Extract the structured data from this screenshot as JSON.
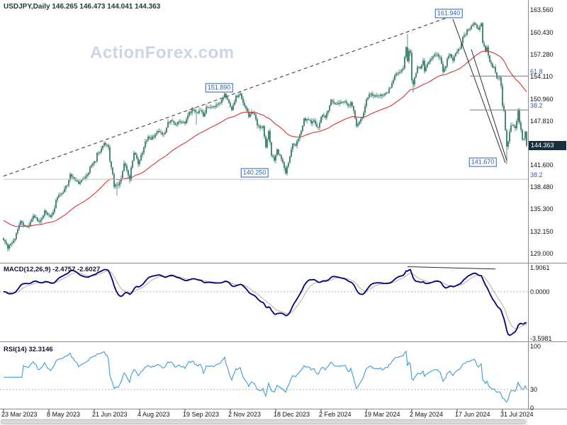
{
  "header": {
    "title": "USDJPY,Daily 146.265 146.473 144.041 144.363",
    "symbol": "USDJPY",
    "timeframe": "Daily",
    "open": "146.265",
    "high": "146.473",
    "low": "144.041",
    "close": "144.363"
  },
  "watermark": "ActionForex.com",
  "panels": {
    "macd": {
      "title": "MACD(12,26,9) -2.4757 -2.6027"
    },
    "rsi": {
      "title": "RSI(14) 32.3146"
    }
  },
  "colors": {
    "background": "#ffffff",
    "candle": "#1d6b5a",
    "ma_line": "#d63333",
    "trendline": "#2f2f2f",
    "fib_line": "#7a7a7a",
    "fib_line_light": "#c4c4c4",
    "label_blue": "#2f5fae",
    "current_price_bg": "#17303d",
    "macd_line": "#00007f",
    "macd_signal": "#b9ad9b",
    "rsi_line": "#3f9bd8",
    "grid_dotted": "#9a9a9a",
    "divider": "#8c8c8c",
    "axis_text": "#111111",
    "watermark": "#c9d6e7"
  },
  "chart_data": {
    "type": "candlestick",
    "symbol": "USDJPY",
    "timeframe": "Daily",
    "x_axis": {
      "total_days": 369,
      "ticks": [
        {
          "label": "23 Mar 2023",
          "day": 0
        },
        {
          "label": "8 May 2023",
          "day": 32
        },
        {
          "label": "21 Jun 2023",
          "day": 64
        },
        {
          "label": "4 Aug 2023",
          "day": 96
        },
        {
          "label": "19 Sep 2023",
          "day": 128
        },
        {
          "label": "2 Nov 2023",
          "day": 160
        },
        {
          "label": "18 Dec 2023",
          "day": 192
        },
        {
          "label": "2 Feb 2024",
          "day": 224
        },
        {
          "label": "19 Mar 2024",
          "day": 256
        },
        {
          "label": "2 May 2024",
          "day": 288
        },
        {
          "label": "17 Jun 2024",
          "day": 320
        },
        {
          "label": "31 Jul 2024",
          "day": 352
        }
      ]
    },
    "main": {
      "price_top": 165.0,
      "price_bottom": 127.7,
      "yticks": [
        "163.560",
        "160.430",
        "157.280",
        "154.110",
        "150.960",
        "147.810",
        "141.600",
        "138.480",
        "135.300",
        "132.150",
        "129.000"
      ],
      "current_price_label": "144.363",
      "ma_period": 55,
      "ma_start": 133.8,
      "close_anchors": [
        [
          0,
          130.9
        ],
        [
          2,
          130.4
        ],
        [
          3,
          129.7
        ],
        [
          5,
          130.4
        ],
        [
          8,
          131.1
        ],
        [
          10,
          132.5
        ],
        [
          12,
          133.6
        ],
        [
          15,
          132.9
        ],
        [
          17,
          132.8
        ],
        [
          19,
          133.5
        ],
        [
          21,
          134.4
        ],
        [
          23,
          134.1
        ],
        [
          25,
          133.5
        ],
        [
          27,
          134.0
        ],
        [
          29,
          135.1
        ],
        [
          31,
          134.5
        ],
        [
          33,
          134.2
        ],
        [
          35,
          134.9
        ],
        [
          37,
          136.6
        ],
        [
          39,
          137.3
        ],
        [
          41,
          137.5
        ],
        [
          43,
          138.2
        ],
        [
          45,
          138.7
        ],
        [
          47,
          140.3
        ],
        [
          49,
          139.8
        ],
        [
          51,
          139.4
        ],
        [
          53,
          138.9
        ],
        [
          55,
          139.4
        ],
        [
          57,
          139.7
        ],
        [
          59,
          140.2
        ],
        [
          61,
          141.3
        ],
        [
          63,
          141.8
        ],
        [
          65,
          142.1
        ],
        [
          66,
          143.3
        ],
        [
          68,
          143.4
        ],
        [
          70,
          144.3
        ],
        [
          71,
          144.7
        ],
        [
          74,
          144.1
        ],
        [
          75,
          142.1
        ],
        [
          77,
          140.3
        ],
        [
          78,
          138.5
        ],
        [
          80,
          138.8
        ],
        [
          81,
          138.7
        ],
        [
          83,
          139.7
        ],
        [
          85,
          141.8
        ],
        [
          86,
          141.5
        ],
        [
          88,
          140.1
        ],
        [
          89,
          139.4
        ],
        [
          90,
          141.2
        ],
        [
          92,
          143.3
        ],
        [
          94,
          142.5
        ],
        [
          95,
          141.7
        ],
        [
          96,
          142.2
        ],
        [
          98,
          143.3
        ],
        [
          100,
          144.9
        ],
        [
          102,
          145.6
        ],
        [
          104,
          145.2
        ],
        [
          107,
          145.9
        ],
        [
          109,
          146.4
        ],
        [
          112,
          145.9
        ],
        [
          114,
          146.2
        ],
        [
          116,
          147.7
        ],
        [
          119,
          147.8
        ],
        [
          121,
          147.3
        ],
        [
          124,
          147.8
        ],
        [
          126,
          147.6
        ],
        [
          128,
          147.5
        ],
        [
          131,
          149.1
        ],
        [
          134,
          149.4
        ],
        [
          136,
          149.1
        ],
        [
          139,
          149.3
        ],
        [
          141,
          148.5
        ],
        [
          143,
          149.8
        ],
        [
          146,
          149.8
        ],
        [
          149,
          149.9
        ],
        [
          151,
          150.2
        ],
        [
          153,
          150.4
        ],
        [
          156,
          151.7
        ],
        [
          158,
          150.9
        ],
        [
          161,
          149.4
        ],
        [
          162,
          150.1
        ],
        [
          164,
          151.4
        ],
        [
          166,
          151.5
        ],
        [
          167,
          151.7
        ],
        [
          169,
          150.4
        ],
        [
          171,
          149.6
        ],
        [
          173,
          148.4
        ],
        [
          175,
          149.1
        ],
        [
          177,
          148.7
        ],
        [
          179,
          147.2
        ],
        [
          181,
          146.8
        ],
        [
          183,
          147.1
        ],
        [
          185,
          144.1
        ],
        [
          187,
          146.4
        ],
        [
          189,
          142.9
        ],
        [
          191,
          142.2
        ],
        [
          193,
          143.8
        ],
        [
          196,
          142.4
        ],
        [
          199,
          140.4
        ],
        [
          201,
          141.9
        ],
        [
          204,
          144.6
        ],
        [
          206,
          144.3
        ],
        [
          208,
          145.3
        ],
        [
          210,
          146.4
        ],
        [
          212,
          148.2
        ],
        [
          214,
          148.1
        ],
        [
          217,
          147.5
        ],
        [
          219,
          147.9
        ],
        [
          222,
          146.9
        ],
        [
          224,
          148.4
        ],
        [
          225,
          148.7
        ],
        [
          227,
          148.3
        ],
        [
          229,
          149.3
        ],
        [
          231,
          150.8
        ],
        [
          234,
          150.2
        ],
        [
          236,
          150.4
        ],
        [
          238,
          150.5
        ],
        [
          241,
          150.6
        ],
        [
          243,
          150.0
        ],
        [
          245,
          150.5
        ],
        [
          247,
          149.3
        ],
        [
          249,
          147.1
        ],
        [
          251,
          147.7
        ],
        [
          254,
          149.0
        ],
        [
          256,
          150.9
        ],
        [
          258,
          151.6
        ],
        [
          260,
          151.4
        ],
        [
          262,
          151.3
        ],
        [
          264,
          151.4
        ],
        [
          266,
          151.6
        ],
        [
          269,
          151.7
        ],
        [
          271,
          151.8
        ],
        [
          274,
          153.2
        ],
        [
          276,
          154.3
        ],
        [
          278,
          154.6
        ],
        [
          280,
          154.8
        ],
        [
          282,
          155.3
        ],
        [
          284,
          158.3
        ],
        [
          285,
          156.3
        ],
        [
          286,
          157.8
        ],
        [
          287,
          157.5
        ],
        [
          288,
          153.6
        ],
        [
          289,
          153.0
        ],
        [
          291,
          154.6
        ],
        [
          292,
          155.5
        ],
        [
          294,
          155.3
        ],
        [
          296,
          156.4
        ],
        [
          297,
          154.9
        ],
        [
          299,
          155.9
        ],
        [
          300,
          156.2
        ],
        [
          302,
          156.7
        ],
        [
          303,
          157.0
        ],
        [
          305,
          157.2
        ],
        [
          308,
          156.8
        ],
        [
          310,
          154.8
        ],
        [
          312,
          155.6
        ],
        [
          313,
          156.7
        ],
        [
          315,
          157.3
        ],
        [
          317,
          156.4
        ],
        [
          318,
          157.0
        ],
        [
          320,
          157.7
        ],
        [
          322,
          158.1
        ],
        [
          324,
          159.8
        ],
        [
          326,
          160.1
        ],
        [
          327,
          160.8
        ],
        [
          329,
          160.9
        ],
        [
          331,
          161.5
        ],
        [
          332,
          161.7
        ],
        [
          334,
          161.0
        ],
        [
          335,
          160.8
        ],
        [
          337,
          161.7
        ],
        [
          338,
          158.9
        ],
        [
          340,
          157.8
        ],
        [
          341,
          158.3
        ],
        [
          343,
          156.2
        ],
        [
          345,
          155.4
        ],
        [
          346,
          155.5
        ],
        [
          348,
          153.9
        ],
        [
          350,
          154.0
        ],
        [
          351,
          152.8
        ],
        [
          352,
          150.0
        ],
        [
          353,
          149.3
        ],
        [
          354,
          146.5
        ],
        [
          355,
          144.2
        ],
        [
          356,
          144.9
        ],
        [
          357,
          146.3
        ],
        [
          358,
          147.2
        ],
        [
          360,
          147.1
        ],
        [
          361,
          146.8
        ],
        [
          363,
          149.3
        ],
        [
          364,
          147.6
        ],
        [
          365,
          146.6
        ],
        [
          366,
          145.2
        ],
        [
          367,
          145.3
        ],
        [
          368,
          146.3
        ],
        [
          369,
          144.363
        ]
      ],
      "key_extremes": [
        {
          "day": 3,
          "low": 129.3
        },
        {
          "day": 80,
          "low": 137.25
        },
        {
          "day": 136,
          "low": 147.3
        },
        {
          "day": 167,
          "high": 151.9
        },
        {
          "day": 199,
          "low": 140.25
        },
        {
          "day": 258,
          "high": 151.97
        },
        {
          "day": 285,
          "high": 160.2
        },
        {
          "day": 289,
          "low": 151.86
        },
        {
          "day": 332,
          "high": 161.94
        },
        {
          "day": 337,
          "high": 161.81
        },
        {
          "day": 355,
          "low": 141.67
        },
        {
          "day": 363,
          "high": 149.4
        }
      ],
      "price_labels": [
        {
          "text": "161.940",
          "day": 314,
          "price": 163.1
        },
        {
          "text": "151.890",
          "day": 152,
          "price": 152.5
        },
        {
          "text": "140.250",
          "day": 177,
          "price": 140.45
        },
        {
          "text": "141.670",
          "day": 338,
          "price": 142.0
        }
      ],
      "fib_levels": [
        {
          "label": "61.8",
          "price": 154.2,
          "from_day": 329,
          "light": false
        },
        {
          "label": "38.2",
          "price": 149.4,
          "from_day": 329,
          "light": false
        },
        {
          "label": "38.2",
          "price": 139.55,
          "from_day": 0,
          "light": true
        }
      ],
      "trendlines": [
        {
          "style": "dashed",
          "from": [
            0,
            140.0
          ],
          "to": [
            320,
            163.0
          ]
        },
        {
          "style": "solid",
          "from": [
            317,
            162.3
          ],
          "to": [
            354,
            141.9
          ]
        },
        {
          "style": "solid",
          "from": [
            330,
            158.0
          ],
          "to": [
            355,
            142.2
          ]
        }
      ]
    },
    "macd": {
      "fast": 12,
      "slow": 26,
      "signal": 9,
      "value": "-2.4757",
      "signal_value": "-2.6027",
      "yticks": [
        "1.9061",
        "0.0000",
        "-3.5981"
      ],
      "trendline": {
        "from": [
          285,
          1.9
        ],
        "to": [
          347,
          1.72
        ]
      }
    },
    "rsi": {
      "period": 14,
      "value": "32.3146",
      "level": 30,
      "yticks": [
        "100",
        "30",
        "0"
      ]
    }
  }
}
